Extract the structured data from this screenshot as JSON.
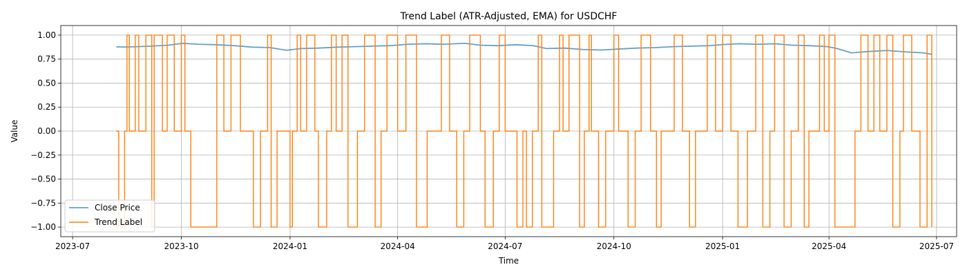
{
  "chart_data": {
    "type": "line",
    "title": "Trend Label (ATR-Adjusted, EMA) for USDCHF",
    "xlabel": "Time",
    "ylabel": "Value",
    "xlim": [
      "2023-06-21",
      "2025-07-18"
    ],
    "ylim": [
      -1.1,
      1.1
    ],
    "grid": true,
    "legend_position": "lower-left",
    "x_ticks": [
      "2023-07",
      "2023-10",
      "2024-01",
      "2024-04",
      "2024-07",
      "2024-10",
      "2025-01",
      "2025-04",
      "2025-07"
    ],
    "y_ticks": [
      1.0,
      0.75,
      0.5,
      0.25,
      0.0,
      -0.25,
      -0.5,
      -0.75,
      -1.0
    ],
    "y_tick_labels": [
      "1.00",
      "0.75",
      "0.50",
      "0.25",
      "0.00",
      "−0.25",
      "−0.50",
      "−0.75",
      "−1.00"
    ],
    "series": [
      {
        "name": "Close Price",
        "color": "#1f77b4",
        "style": "line",
        "x": [
          "2023-08-07",
          "2023-08-15",
          "2023-08-25",
          "2023-09-05",
          "2023-09-20",
          "2023-10-02",
          "2023-10-15",
          "2023-10-30",
          "2023-11-15",
          "2023-11-30",
          "2023-12-15",
          "2023-12-29",
          "2024-01-10",
          "2024-01-25",
          "2024-02-10",
          "2024-02-25",
          "2024-03-10",
          "2024-03-25",
          "2024-04-10",
          "2024-04-25",
          "2024-05-10",
          "2024-05-28",
          "2024-06-10",
          "2024-06-25",
          "2024-07-10",
          "2024-07-25",
          "2024-08-05",
          "2024-08-20",
          "2024-09-05",
          "2024-09-20",
          "2024-10-05",
          "2024-10-20",
          "2024-11-05",
          "2024-11-20",
          "2024-12-05",
          "2024-12-20",
          "2025-01-05",
          "2025-01-15",
          "2025-01-30",
          "2025-02-15",
          "2025-03-01",
          "2025-03-15",
          "2025-03-31",
          "2025-04-08",
          "2025-04-20",
          "2025-05-05",
          "2025-05-20",
          "2025-06-05",
          "2025-06-20",
          "2025-06-27"
        ],
        "values": [
          0.877,
          0.876,
          0.88,
          0.885,
          0.895,
          0.915,
          0.905,
          0.9,
          0.89,
          0.875,
          0.87,
          0.842,
          0.86,
          0.865,
          0.875,
          0.88,
          0.885,
          0.89,
          0.905,
          0.91,
          0.905,
          0.915,
          0.895,
          0.89,
          0.9,
          0.89,
          0.86,
          0.865,
          0.85,
          0.845,
          0.855,
          0.865,
          0.87,
          0.88,
          0.885,
          0.89,
          0.905,
          0.91,
          0.905,
          0.91,
          0.895,
          0.89,
          0.88,
          0.86,
          0.815,
          0.83,
          0.84,
          0.825,
          0.815,
          0.8
        ]
      },
      {
        "name": "Trend Label",
        "color": "#ff7f0e",
        "style": "step",
        "x": [
          "2023-08-07",
          "2023-08-09",
          "2023-08-14",
          "2023-08-16",
          "2023-08-18",
          "2023-08-23",
          "2023-08-26",
          "2023-09-01",
          "2023-09-06",
          "2023-09-08",
          "2023-09-15",
          "2023-09-19",
          "2023-09-25",
          "2023-10-01",
          "2023-10-04",
          "2023-10-09",
          "2023-10-17",
          "2023-10-31",
          "2023-11-06",
          "2023-11-12",
          "2023-11-20",
          "2023-12-01",
          "2023-12-07",
          "2023-12-13",
          "2023-12-16",
          "2023-12-21",
          "2024-01-01",
          "2024-01-03",
          "2024-01-07",
          "2024-01-10",
          "2024-01-15",
          "2024-01-22",
          "2024-01-25",
          "2024-02-01",
          "2024-02-05",
          "2024-02-09",
          "2024-02-14",
          "2024-02-19",
          "2024-02-27",
          "2024-03-04",
          "2024-03-13",
          "2024-03-18",
          "2024-03-23",
          "2024-04-01",
          "2024-04-08",
          "2024-04-17",
          "2024-04-26",
          "2024-05-08",
          "2024-05-15",
          "2024-05-21",
          "2024-05-27",
          "2024-06-01",
          "2024-06-10",
          "2024-06-14",
          "2024-06-21",
          "2024-06-26",
          "2024-07-01",
          "2024-07-11",
          "2024-07-16",
          "2024-07-19",
          "2024-07-24",
          "2024-07-29",
          "2024-08-01",
          "2024-08-11",
          "2024-08-16",
          "2024-08-19",
          "2024-08-24",
          "2024-09-02",
          "2024-09-06",
          "2024-09-10",
          "2024-09-12",
          "2024-09-18",
          "2024-09-24",
          "2024-10-01",
          "2024-10-05",
          "2024-10-13",
          "2024-10-19",
          "2024-10-24",
          "2024-11-01",
          "2024-11-06",
          "2024-11-10",
          "2024-11-21",
          "2024-11-28",
          "2024-12-04",
          "2024-12-09",
          "2024-12-19",
          "2024-12-26",
          "2025-01-01",
          "2025-01-08",
          "2025-01-14",
          "2025-01-22",
          "2025-01-29",
          "2025-02-04",
          "2025-02-10",
          "2025-02-14",
          "2025-02-22",
          "2025-02-28",
          "2025-03-06",
          "2025-03-11",
          "2025-03-15",
          "2025-03-24",
          "2025-03-28",
          "2025-04-01",
          "2025-04-06",
          "2025-04-20",
          "2025-04-23",
          "2025-04-28",
          "2025-05-04",
          "2025-05-09",
          "2025-05-14",
          "2025-05-20",
          "2025-05-25",
          "2025-05-31",
          "2025-06-03",
          "2025-06-10",
          "2025-06-17",
          "2025-06-23",
          "2025-06-27"
        ],
        "values": [
          0,
          -1,
          0,
          1,
          0,
          1,
          0,
          1,
          -1,
          1,
          0,
          1,
          0,
          1,
          0,
          -1,
          -1,
          1,
          0,
          1,
          0,
          -1,
          0,
          1,
          -1,
          0,
          -1,
          0,
          1,
          0,
          1,
          0,
          -1,
          0,
          1,
          0,
          1,
          -1,
          0,
          1,
          -1,
          0,
          1,
          0,
          1,
          -1,
          0,
          1,
          0,
          -1,
          0,
          1,
          0,
          -1,
          0,
          1,
          0,
          -1,
          0,
          -1,
          0,
          1,
          -1,
          0,
          1,
          0,
          1,
          -1,
          0,
          1,
          0,
          -1,
          0,
          1,
          0,
          -1,
          0,
          1,
          0,
          -1,
          0,
          1,
          0,
          -1,
          0,
          1,
          0,
          1,
          0,
          -1,
          0,
          1,
          -1,
          0,
          1,
          -1,
          0,
          1,
          -1,
          0,
          1,
          0,
          1,
          -1,
          -1,
          0,
          1,
          0,
          1,
          0,
          1,
          -1,
          0,
          1,
          0,
          -1,
          1,
          -1
        ]
      }
    ]
  }
}
